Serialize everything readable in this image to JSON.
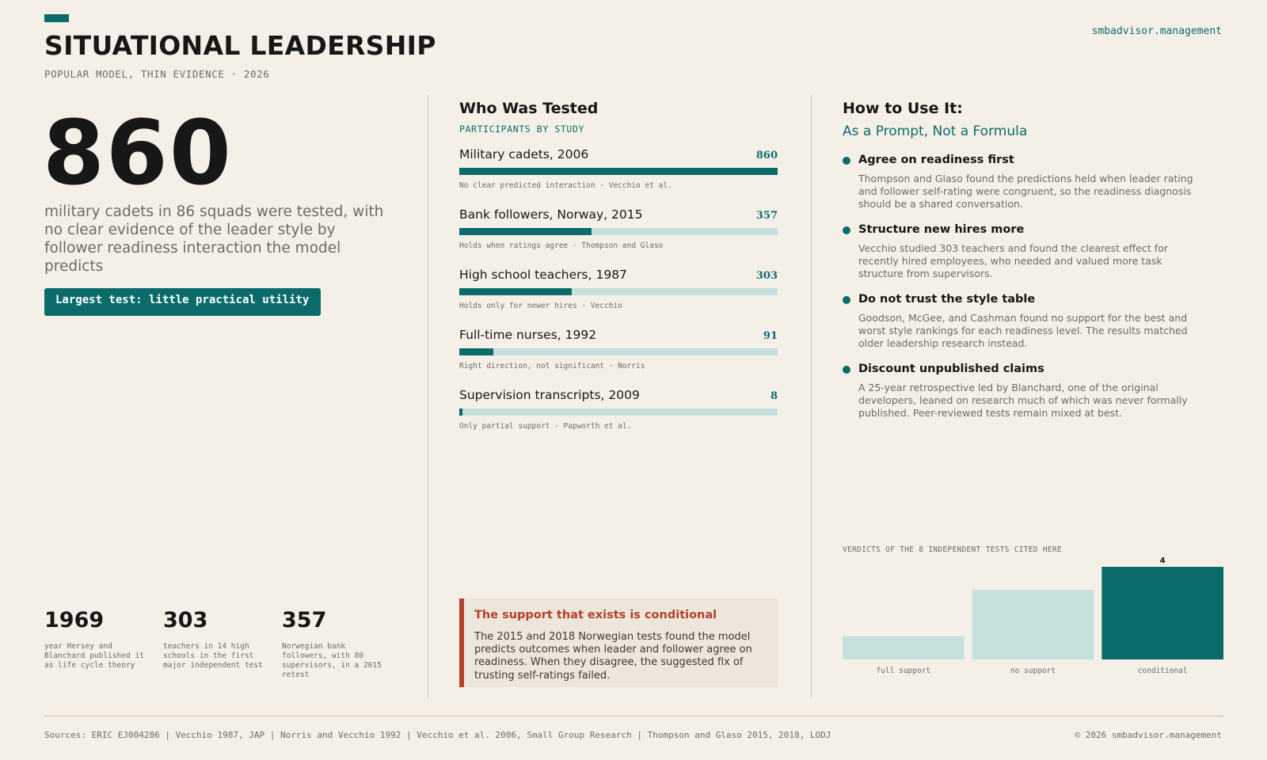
{
  "header": {
    "title": "SITUATIONAL LEADERSHIP",
    "subtitle": "POPULAR MODEL, THIN EVIDENCE · 2026",
    "site": "smbadvisor.management"
  },
  "hero": {
    "number": "860",
    "caption": "military cadets in 86 squads were tested, with no clear evidence of the leader style by follower readiness interaction the model predicts",
    "badge": "Largest test: little practical utility"
  },
  "stats": [
    {
      "value": "1969",
      "desc": "year Hersey and Blanchard published it as life cycle theory"
    },
    {
      "value": "303",
      "desc": "teachers in 14 high schools in the first major independent test"
    },
    {
      "value": "357",
      "desc": "Norwegian bank followers, with 80 supervisors, in a 2015 retest"
    }
  ],
  "studies": {
    "title": "Who Was Tested",
    "kicker": "PARTICIPANTS BY STUDY",
    "max": 860,
    "items": [
      {
        "label": "Military cadets, 2006",
        "count": 860,
        "note": "No clear predicted interaction · Vecchio et al."
      },
      {
        "label": "Bank followers, Norway, 2015",
        "count": 357,
        "note": "Holds when ratings agree · Thompson and Glaso"
      },
      {
        "label": "High school teachers, 1987",
        "count": 303,
        "note": "Holds only for newer hires · Vecchio"
      },
      {
        "label": "Full-time nurses, 1992",
        "count": 91,
        "note": "Right direction, not significant · Norris"
      },
      {
        "label": "Supervision transcripts, 2009",
        "count": 8,
        "note": "Only partial support · Papworth et al."
      }
    ]
  },
  "callout": {
    "title": "The support that exists is conditional",
    "body": "The 2015 and 2018 Norwegian tests found the model predicts outcomes when leader and follower agree on readiness. When they disagree, the suggested fix of trusting self-ratings failed."
  },
  "howto": {
    "title": "How to Use It:",
    "subtitle": "As a Prompt, Not a Formula",
    "tips": [
      {
        "title": "Agree on readiness first",
        "body": "Thompson and Glaso found the predictions held when leader rating and follower self-rating were congruent, so the readiness diagnosis should be a shared conversation."
      },
      {
        "title": "Structure new hires more",
        "body": "Vecchio studied 303 teachers and found the clearest effect for recently hired employees, who needed and valued more task structure from supervisors."
      },
      {
        "title": "Do not trust the style table",
        "body": "Goodson, McGee, and Cashman found no support for the best and worst style rankings for each readiness level. The results matched older leadership research instead."
      },
      {
        "title": "Discount unpublished claims",
        "body": "A 25-year retrospective led by Blanchard, one of the original developers, leaned on research much of which was never formally published. Peer-reviewed tests remain mixed at best."
      }
    ]
  },
  "chart_data": {
    "type": "bar",
    "title": "VERDICTS OF THE 8 INDEPENDENT TESTS CITED HERE",
    "categories": [
      "full support",
      "no support",
      "conditional"
    ],
    "values": [
      1,
      3,
      4
    ],
    "data_labels": [
      "",
      "",
      "4"
    ],
    "ylim": [
      0,
      4
    ],
    "colors": [
      "#c5e0dc",
      "#c5e0dc",
      "#0b6b6b"
    ]
  },
  "footer": {
    "sources": "Sources: ERIC EJ004286 | Vecchio 1987, JAP | Norris and Vecchio 1992 | Vecchio et al. 2006, Small Group Research | Thompson and Glaso 2015, 2018, LODJ",
    "copyright": "© 2026 smbadvisor.management"
  },
  "colors": {
    "accent": "#0b6b6b",
    "accent_light": "#c5e0dc",
    "warning": "#b3412a",
    "background": "#f4f0e8"
  }
}
